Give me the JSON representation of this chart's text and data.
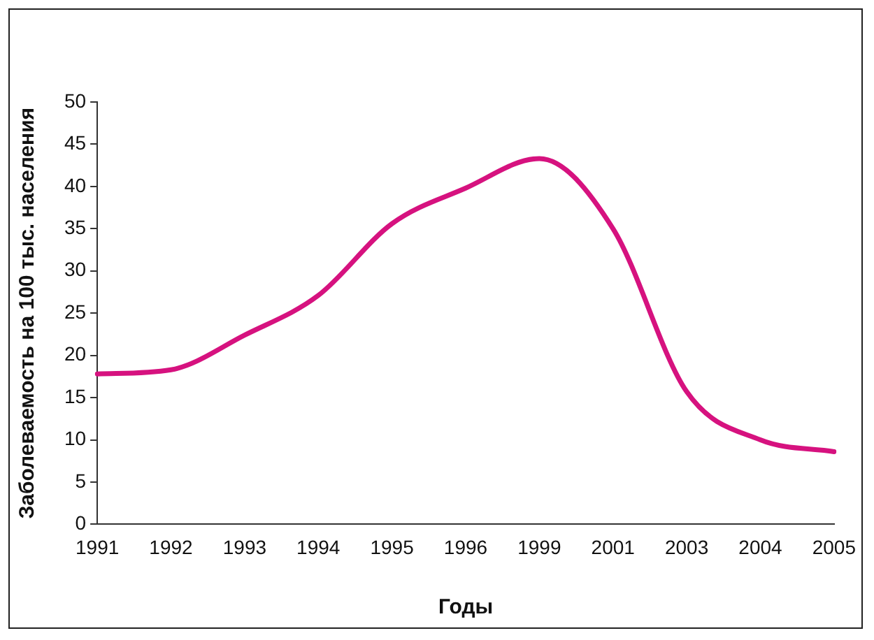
{
  "chart_data": {
    "type": "line",
    "xlabel": "Годы",
    "ylabel": "Заболеваемость на 100 тыс. населения",
    "categories": [
      "1991",
      "1992",
      "1993",
      "1994",
      "1995",
      "1996",
      "1999",
      "2001",
      "2003",
      "2004",
      "2005"
    ],
    "series": [
      {
        "color": "#d6127f",
        "values": [
          17.8,
          18.3,
          22.4,
          27.1,
          35.6,
          39.8,
          43.3,
          35.0,
          15.7,
          10.0,
          8.6
        ]
      }
    ],
    "ylim": [
      0,
      50
    ],
    "yticks": [
      0,
      5,
      10,
      15,
      20,
      25,
      30,
      35,
      40,
      45,
      50
    ],
    "grid": false,
    "legend": false,
    "marker": "none",
    "line_style": "solid"
  }
}
